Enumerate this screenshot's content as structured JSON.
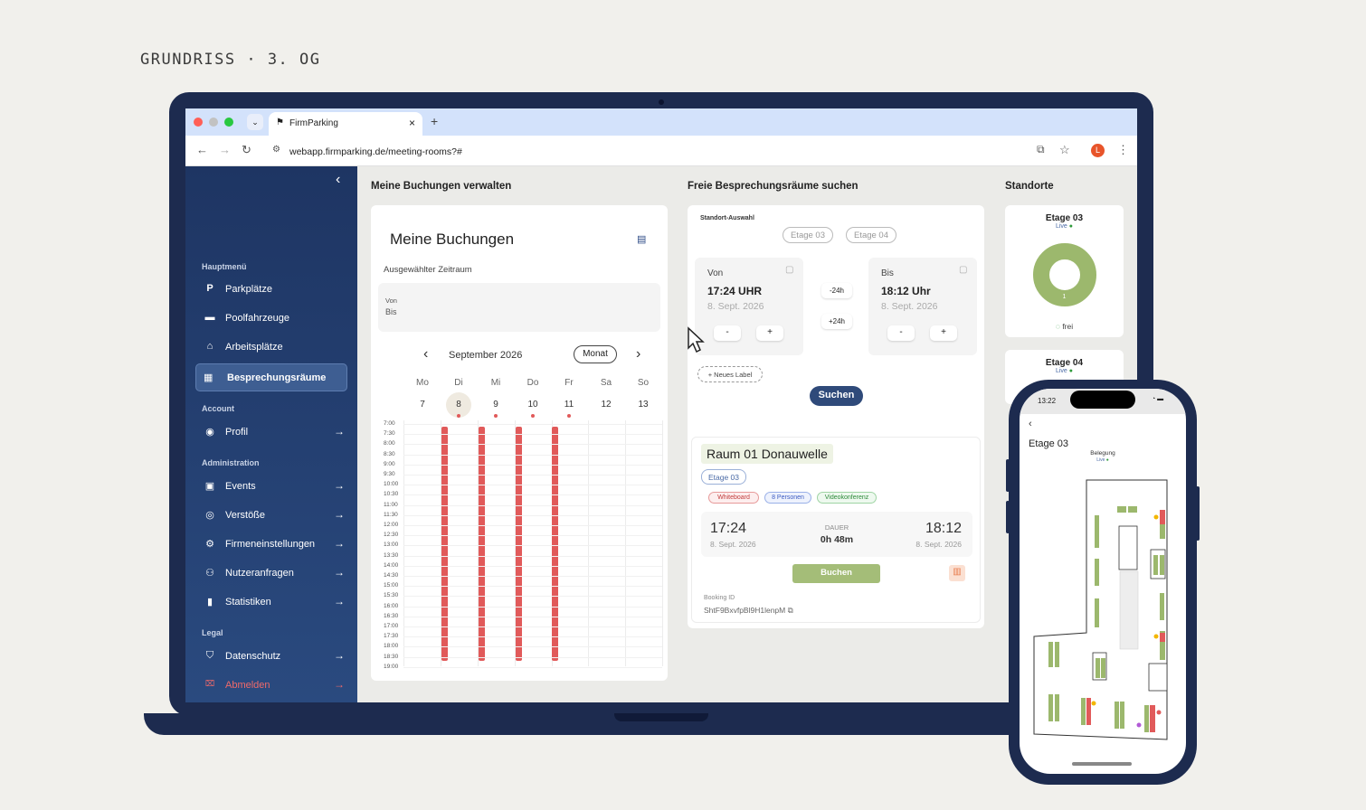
{
  "caption": "GRUNDRISS · 3. OG",
  "browser": {
    "tab_title": "FirmParking",
    "tab_close": "×",
    "new_tab": "+",
    "url": "webapp.firmparking.de/meeting-rooms?#",
    "avatar_letter": "L"
  },
  "sidebar": {
    "collapse": "‹",
    "sections": {
      "hauptmenu": "Hauptmenü",
      "account": "Account",
      "administration": "Administration",
      "legal": "Legal"
    },
    "items": [
      {
        "label": "Parkplätze",
        "icon": "P"
      },
      {
        "label": "Poolfahrzeuge",
        "icon": "🚘"
      },
      {
        "label": "Arbeitsplätze",
        "icon": "⌂"
      },
      {
        "label": "Besprechungsräume",
        "icon": "▦"
      },
      {
        "label": "Profil",
        "icon": "◉"
      },
      {
        "label": "Events",
        "icon": "▣"
      },
      {
        "label": "Verstöße",
        "icon": "◎"
      },
      {
        "label": "Firmeneinstellungen",
        "icon": "⚙"
      },
      {
        "label": "Nutzeranfragen",
        "icon": "⚇"
      },
      {
        "label": "Statistiken",
        "icon": "▮"
      },
      {
        "label": "Datenschutz",
        "icon": "⛉"
      },
      {
        "label": "Abmelden",
        "icon": "🔒"
      }
    ],
    "arrow": "→"
  },
  "bookings": {
    "section_title": "Meine Buchungen verwalten",
    "card_title": "Meine Buchungen",
    "range_label": "Ausgewählter Zeitraum",
    "von": "Von",
    "bis": "Bis",
    "month": "September 2026",
    "view_button": "Monat",
    "prev": "‹",
    "next": "›",
    "weekdays": [
      "Mo",
      "Di",
      "Mi",
      "Do",
      "Fr",
      "Sa",
      "So"
    ],
    "days": [
      "7",
      "8",
      "9",
      "10",
      "11",
      "12",
      "13"
    ],
    "times": [
      "7:00",
      "7:30",
      "8:00",
      "8:30",
      "9:00",
      "9:30",
      "10:00",
      "10:30",
      "11:00",
      "11:30",
      "12:00",
      "12:30",
      "13:00",
      "13:30",
      "14:00",
      "14:30",
      "15:00",
      "15:30",
      "16:00",
      "16:30",
      "17:00",
      "17:30",
      "18:00",
      "18:30",
      "19:00"
    ]
  },
  "search": {
    "section_title": "Freie Besprechungsräume suchen",
    "location_label": "Standort-Auswahl",
    "floors": [
      "Etage 03",
      "Etage 04"
    ],
    "von_label": "Von",
    "von_time": "17:24 UHR",
    "von_date": "8. Sept. 2026",
    "bis_label": "Bis",
    "bis_time": "18:12 Uhr",
    "bis_date": "8. Sept. 2026",
    "minus": "-",
    "plus": "+",
    "minus24": "-24h",
    "plus24": "+24h",
    "new_label": "+ Neues Label",
    "search_button": "Suchen"
  },
  "room": {
    "name": "Raum 01 Donauwelle",
    "floor": "Etage 03",
    "tags": [
      "Whiteboard",
      "8 Personen",
      "Videokonferenz"
    ],
    "start_time": "17:24",
    "start_date": "8. Sept. 2026",
    "duration_label": "DAUER",
    "duration": "0h 48m",
    "end_time": "18:12",
    "end_date": "8. Sept. 2026",
    "book_button": "Buchen",
    "booking_id_label": "Booking ID",
    "booking_id": "ShtF9BxvfpBl9H1lenpM"
  },
  "locations": {
    "section_title": "Standorte",
    "items": [
      {
        "name": "Etage 03",
        "status": "Live",
        "free_count": "1",
        "free_label": "frei"
      },
      {
        "name": "Etage 04",
        "status": "Live"
      }
    ]
  },
  "phone": {
    "time": "13:22",
    "back": "‹",
    "title": "Etage 03",
    "occupancy_label": "Belegung",
    "status": "Live"
  },
  "colors": {
    "sidebar": "#1e3563",
    "accent_red": "#e15a5a",
    "accent_green": "#9cb86d",
    "device": "#1d2b4f"
  }
}
